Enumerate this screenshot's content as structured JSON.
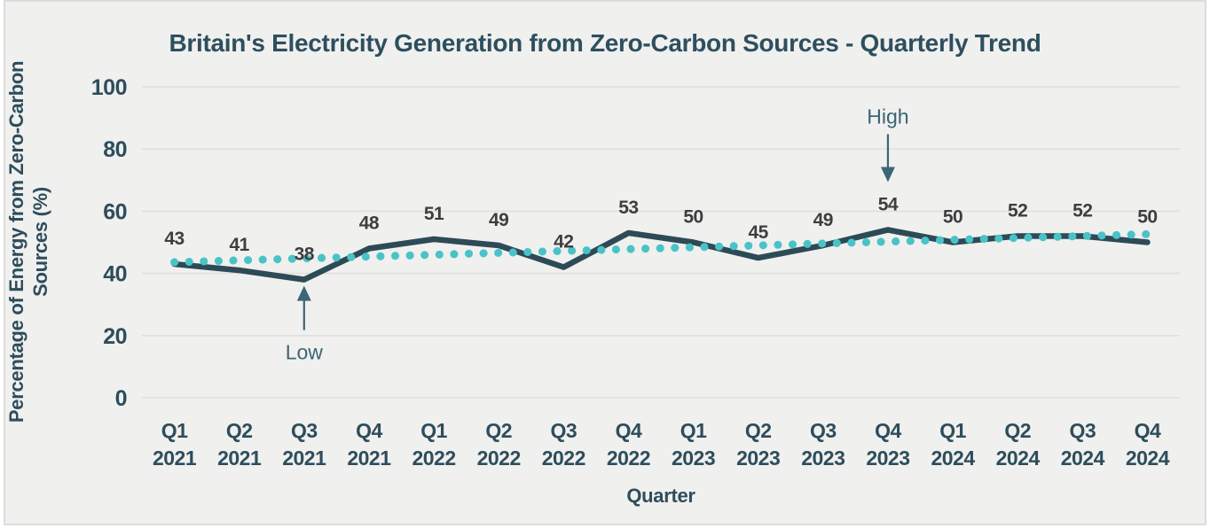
{
  "chart_data": {
    "type": "line",
    "title": "Britain's Electricity Generation from Zero-Carbon Sources - Quarterly Trend",
    "xlabel": "Quarter",
    "ylabel": "Percentage of Energy from Zero-Carbon Sources (%)",
    "ylabel_lines": [
      "Percentage of Energy from Zero-Carbon",
      "Sources (%)"
    ],
    "categories": [
      "Q1 2021",
      "Q2 2021",
      "Q3 2021",
      "Q4 2021",
      "Q1 2022",
      "Q2 2022",
      "Q3 2022",
      "Q4 2022",
      "Q1 2023",
      "Q2 2023",
      "Q3 2023",
      "Q4 2023",
      "Q1 2024",
      "Q2 2024",
      "Q3 2024",
      "Q4 2024"
    ],
    "series": [
      {
        "name": "zero_carbon_percentage",
        "style": "solid",
        "color": "#2d4a57",
        "show_data_labels": true,
        "values": [
          43,
          41,
          38,
          48,
          51,
          49,
          42,
          53,
          50,
          45,
          49,
          54,
          50,
          52,
          52,
          50
        ]
      },
      {
        "name": "trend",
        "style": "dotted",
        "color": "#4ac3c8",
        "show_data_labels": false,
        "values": [
          43.6,
          44.2,
          44.8,
          45.4,
          46.0,
          46.6,
          47.2,
          47.8,
          48.4,
          49.0,
          49.6,
          50.2,
          50.8,
          51.4,
          52.0,
          52.6
        ]
      }
    ],
    "ylim": [
      0,
      100
    ],
    "yticks": [
      0,
      20,
      40,
      60,
      80,
      100
    ],
    "grid": "horizontal",
    "legend": "none",
    "annotations": [
      {
        "label": "High",
        "category": "Q4 2023",
        "value": 54,
        "arrow": "down"
      },
      {
        "label": "Low",
        "category": "Q3 2021",
        "value": 38,
        "arrow": "up"
      }
    ],
    "colors": {
      "background": "#f0f0ee",
      "border": "#dcdcdc",
      "gridline": "#dfdfdd",
      "axis_text": "#2d4d5c",
      "title_text": "#2d4f5e",
      "data_label_text": "#3e3e3e",
      "solid_line": "#2d4a57",
      "trend_dots": "#4ac3c8",
      "annotation": "#3c6577"
    }
  }
}
